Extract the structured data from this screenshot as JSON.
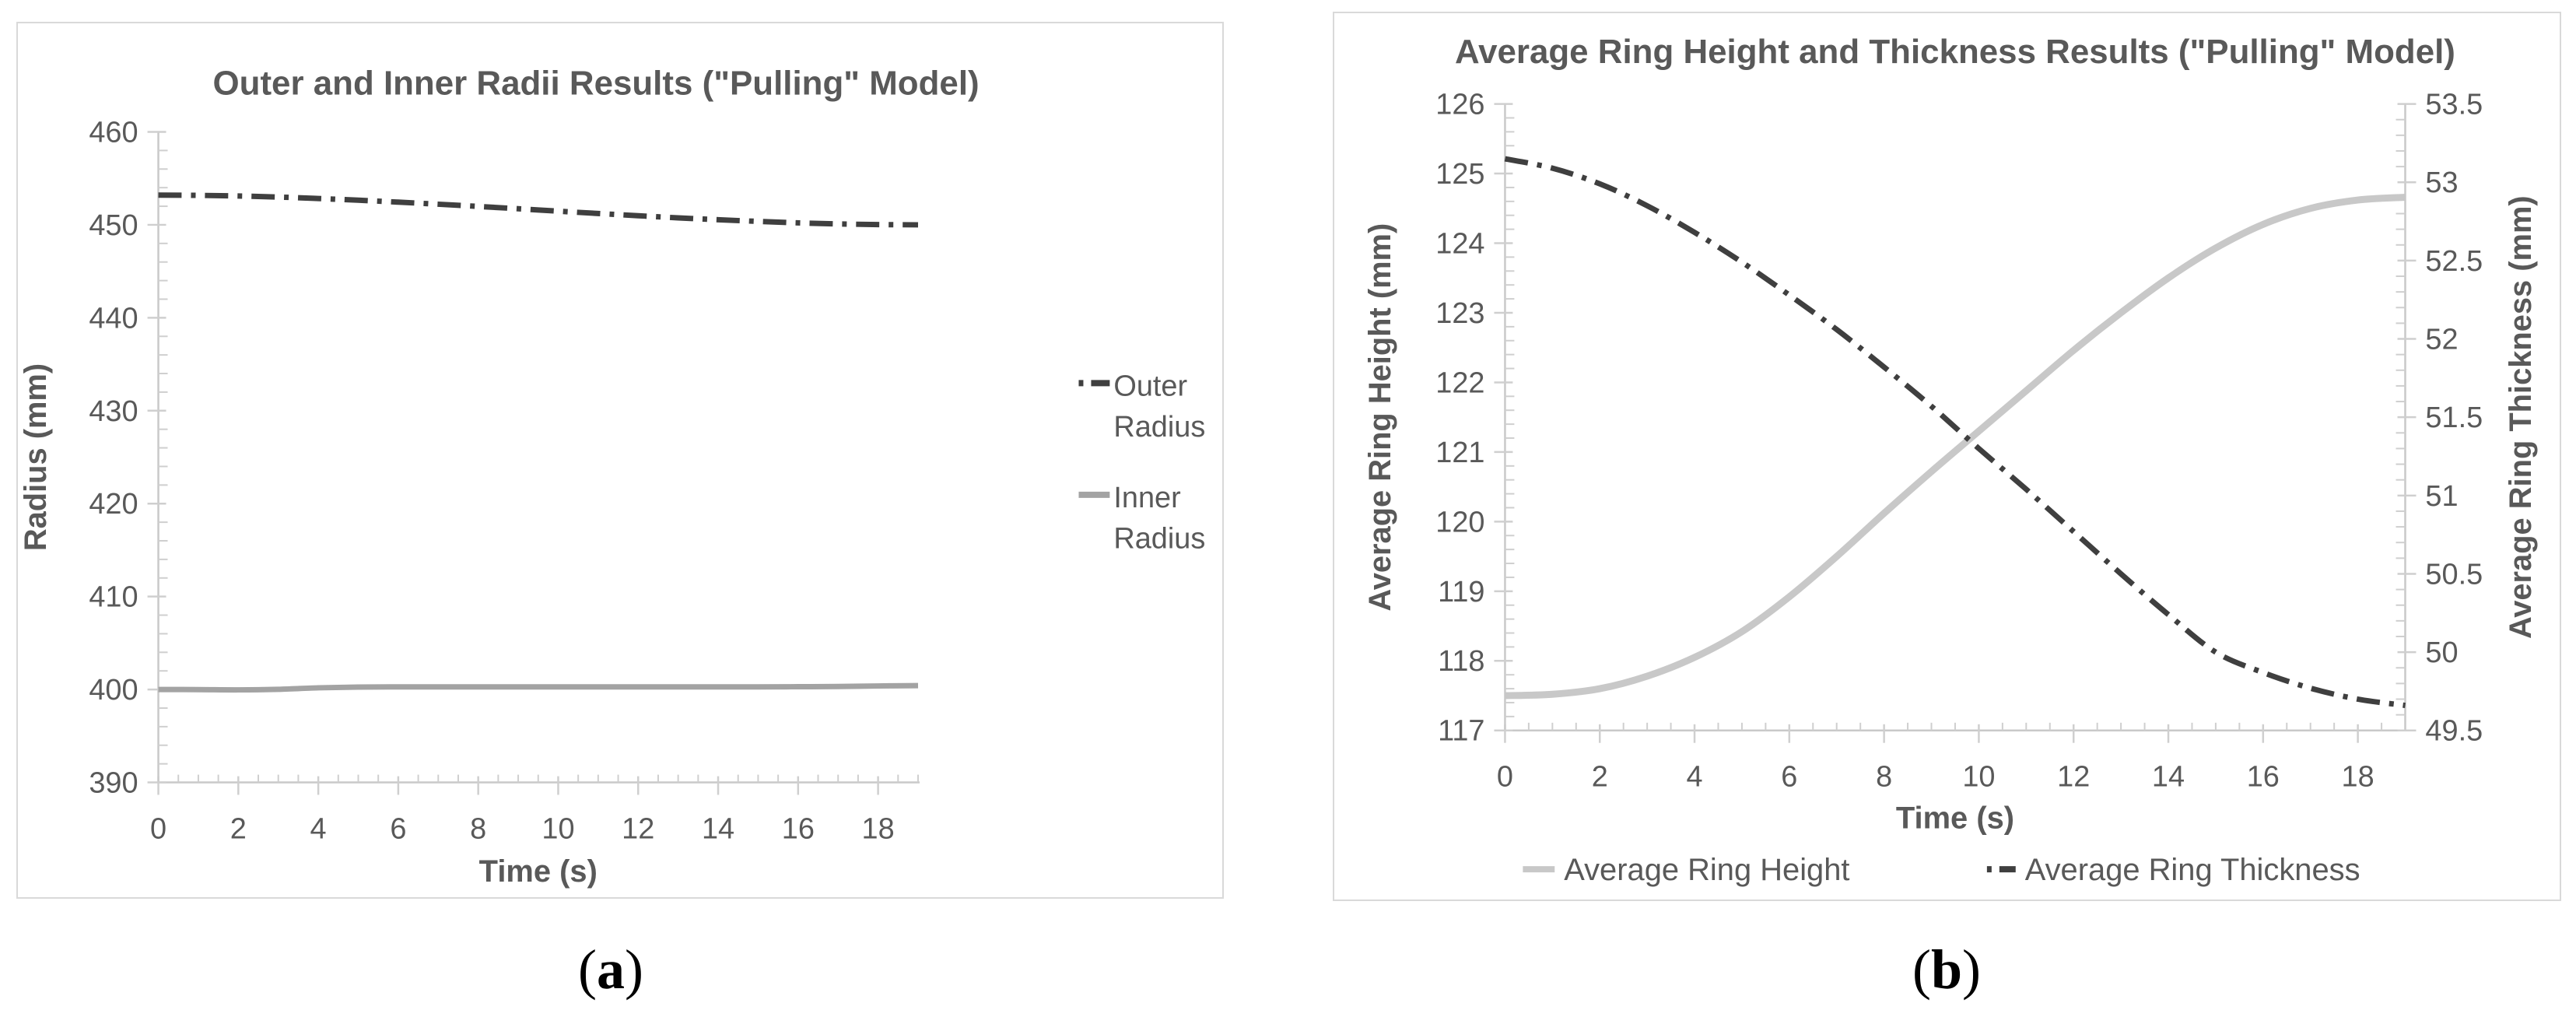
{
  "page": {
    "captions": {
      "a": "(a)",
      "b": "(b)"
    }
  },
  "colors": {
    "text": "#595959",
    "title": "#595959",
    "axis_line": "#c9c9c9",
    "tick": "#cfcfcf",
    "panel_border": "#d9d9d9",
    "dark_series": "#3f3f3f",
    "mid_gray_series": "#a3a3a3",
    "light_gray_series": "#c8c8c8",
    "caption": "#000000"
  },
  "chart_data": [
    {
      "type": "line",
      "title": "Outer and Inner Radii Results (\"Pulling\" Model)",
      "xlabel": "Time (s)",
      "ylabel": "Radius (mm)",
      "xlim": [
        0,
        19
      ],
      "ylim": [
        390,
        460
      ],
      "grid": false,
      "legend_position": "right",
      "x_tick_labels": [
        "0",
        "2",
        "4",
        "6",
        "8",
        "10",
        "12",
        "14",
        "16",
        "18"
      ],
      "y_tick_labels": [
        "390",
        "400",
        "410",
        "420",
        "430",
        "440",
        "450",
        "460"
      ],
      "x_minor_step": 0.5,
      "y_minor_step": 2,
      "x": [
        0,
        1,
        2,
        3,
        4,
        5,
        6,
        7,
        8,
        9,
        10,
        11,
        12,
        13,
        14,
        15,
        16,
        17,
        18,
        19
      ],
      "series": [
        {
          "name": "Outer Radius",
          "legend_lines": [
            "Outer",
            "Radius"
          ],
          "style": "dashdot",
          "color_key": "dark_series",
          "width": 7,
          "values": [
            453.2,
            453.17,
            453.1,
            452.99,
            452.83,
            452.65,
            452.44,
            452.22,
            451.98,
            451.73,
            451.47,
            451.22,
            450.98,
            450.75,
            450.55,
            450.37,
            450.21,
            450.1,
            450.03,
            450.0
          ]
        },
        {
          "name": "Inner Radius",
          "legend_lines": [
            "Inner",
            "Radius"
          ],
          "style": "solid",
          "color_key": "mid_gray_series",
          "width": 7,
          "values": [
            400.0,
            399.99,
            399.96,
            400.02,
            400.18,
            400.26,
            400.28,
            400.28,
            400.28,
            400.28,
            400.28,
            400.28,
            400.28,
            400.28,
            400.28,
            400.28,
            400.3,
            400.32,
            400.38,
            400.42
          ]
        }
      ]
    },
    {
      "type": "line-dual-axis",
      "title": "Average Ring Height and Thickness Results (\"Pulling\" Model)",
      "xlabel": "Time (s)",
      "ylabel_left": "Average Ring Height (mm)",
      "ylabel_right": "Average Ring Thickness (mm)",
      "xlim": [
        0,
        19
      ],
      "ylim_left": [
        117,
        126
      ],
      "ylim_right": [
        49.5,
        53.5
      ],
      "grid": false,
      "legend_position": "bottom",
      "x_tick_labels": [
        "0",
        "2",
        "4",
        "6",
        "8",
        "10",
        "12",
        "14",
        "16",
        "18"
      ],
      "yl_tick_labels": [
        "117",
        "118",
        "119",
        "120",
        "121",
        "122",
        "123",
        "124",
        "125",
        "126"
      ],
      "yr_tick_labels": [
        "49.5",
        "50",
        "50.5",
        "51",
        "51.5",
        "52",
        "52.5",
        "53",
        "53.5"
      ],
      "x_minor_step": 0.5,
      "yl_minor_step": 0.2,
      "yr_minor_step": 0.1,
      "x": [
        0,
        1,
        2,
        3,
        4,
        5,
        6,
        7,
        8,
        9,
        10,
        11,
        12,
        13,
        14,
        15,
        16,
        17,
        18,
        19
      ],
      "series": [
        {
          "name": "Average Ring Height",
          "axis": "left",
          "style": "solid",
          "color_key": "light_gray_series",
          "width": 9,
          "values": [
            117.5,
            117.52,
            117.6,
            117.78,
            118.05,
            118.42,
            118.92,
            119.5,
            120.12,
            120.72,
            121.3,
            121.88,
            122.46,
            123.0,
            123.5,
            123.93,
            124.27,
            124.5,
            124.62,
            124.66
          ]
        },
        {
          "name": "Average Ring Thickness",
          "axis": "right",
          "style": "dashdot",
          "color_key": "dark_series",
          "width": 7,
          "values": [
            53.15,
            53.09,
            52.99,
            52.85,
            52.68,
            52.49,
            52.28,
            52.06,
            51.82,
            51.57,
            51.3,
            51.04,
            50.77,
            50.5,
            50.24,
            50.0,
            49.87,
            49.77,
            49.7,
            49.66
          ]
        }
      ]
    }
  ]
}
